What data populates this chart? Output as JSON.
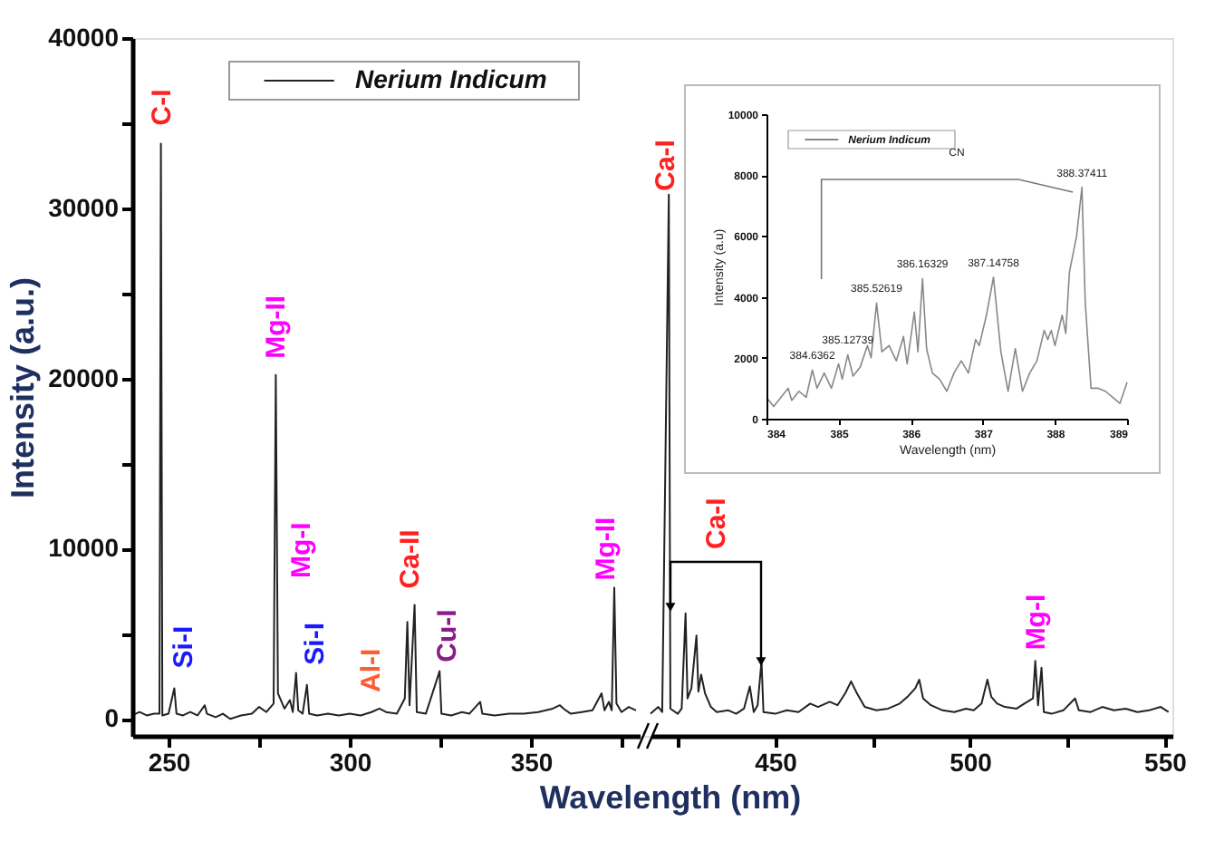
{
  "chart_data": [
    {
      "type": "line",
      "xlabel": "Wavelength (nm)",
      "ylabel": "Intensity (a.u.)",
      "xlim": [
        240,
        380
      ],
      "xticks": [
        250,
        {
          "value": 275,
          "label": null
        },
        300,
        {
          "value": 325,
          "label": null
        },
        350,
        {
          "value": 375,
          "label": null
        }
      ],
      "ylim": [
        -1000,
        40000
      ],
      "yticks": [
        0,
        {
          "value": 5000,
          "label": null
        },
        10000,
        {
          "value": 15000,
          "label": null
        },
        20000,
        {
          "value": 25000,
          "label": null
        },
        30000,
        {
          "value": 35000,
          "label": null
        },
        40000
      ],
      "legend": "top",
      "grid": false,
      "series": [
        {
          "name": "Nerium Indicum",
          "color": "#222222",
          "x": [
            240,
            242,
            244,
            246,
            247.5,
            247.9,
            248.3,
            250,
            251.6,
            252.2,
            254,
            256,
            258,
            260,
            260.6,
            263,
            265,
            267,
            270,
            273,
            275,
            277,
            279,
            279.6,
            280.2,
            282,
            283.5,
            284.3,
            285.2,
            285.8,
            287,
            288.2,
            288.8,
            291,
            294,
            297,
            300,
            303,
            306,
            308.2,
            310,
            313,
            315.2,
            315.9,
            316.5,
            317.9,
            318.5,
            321,
            324.8,
            325.3,
            328,
            331,
            333,
            336,
            336.6,
            340,
            344,
            348,
            352,
            356,
            358,
            359,
            361,
            364,
            367,
            369.5,
            370.3,
            371.5,
            372.3,
            373,
            373.6,
            375,
            377,
            379
          ],
          "values": [
            200,
            400,
            200,
            300,
            300,
            33800,
            200,
            300,
            1800,
            300,
            200,
            400,
            200,
            800,
            300,
            100,
            300,
            0,
            200,
            300,
            700,
            400,
            900,
            20200,
            1500,
            600,
            1100,
            400,
            2700,
            500,
            300,
            2000,
            300,
            200,
            300,
            200,
            300,
            200,
            400,
            600,
            400,
            300,
            1200,
            5700,
            800,
            6700,
            400,
            300,
            2800,
            300,
            200,
            400,
            300,
            1000,
            300,
            200,
            300,
            300,
            400,
            600,
            800,
            600,
            300,
            400,
            500,
            1500,
            500,
            1000,
            500,
            7700,
            900,
            400,
            700,
            500
          ]
        }
      ],
      "annotations": [
        {
          "text": "C-I",
          "x": 247.9,
          "y": 33800
        },
        {
          "text": "Si-I",
          "x": 251.6,
          "y": 1800
        },
        {
          "text": "Mg-II",
          "x": 279.6,
          "y": 20200
        },
        "Mg-I",
        {
          "text": "Si-I",
          "x": 288.2,
          "y": 2000
        },
        {
          "text": "Al-I",
          "x": 308.2,
          "y": 600
        },
        {
          "text": "Ca-II",
          "x": 317.9,
          "y": 6700
        },
        {
          "text": "Cu-I",
          "x": 324.8,
          "y": 2800
        },
        {
          "text": "Mg-II",
          "x": 373,
          "y": 7700
        }
      ]
    },
    {
      "type": "line",
      "xlim": [
        418,
        552
      ],
      "xticks": [
        {
          "value": 425,
          "label": null
        },
        450,
        {
          "value": 475,
          "label": null
        },
        500,
        {
          "value": 525,
          "label": null
        },
        550
      ],
      "ylim": [
        -1000,
        40000
      ],
      "tick_labels": "x",
      "grid": false,
      "series": [
        {
          "color": "#222222",
          "x": [
            418,
            420,
            421,
            422.7,
            423.1,
            425,
            426,
            427,
            427.5,
            428.5,
            429.8,
            430.3,
            431,
            432,
            433.5,
            435,
            438,
            440,
            442,
            443.5,
            444.5,
            445.5,
            446.5,
            447,
            450,
            453,
            456,
            459,
            461,
            464,
            466,
            468,
            469.5,
            471,
            473,
            476,
            479,
            482,
            484,
            486,
            487,
            488,
            490,
            493,
            496,
            499,
            501,
            503,
            504.5,
            505.5,
            507,
            509,
            512,
            514,
            516.2,
            516.8,
            517.5,
            518.4,
            519,
            521,
            524,
            527,
            528,
            531,
            534,
            537,
            540,
            543,
            546,
            549,
            551
          ],
          "values": [
            300,
            700,
            400,
            30800,
            600,
            300,
            600,
            6200,
            1200,
            1800,
            4900,
            1600,
            2600,
            1500,
            700,
            400,
            500,
            300,
            600,
            1900,
            400,
            800,
            3400,
            400,
            300,
            500,
            400,
            900,
            700,
            1000,
            800,
            1500,
            2200,
            1500,
            700,
            500,
            600,
            900,
            1300,
            1800,
            2300,
            1200,
            800,
            500,
            400,
            600,
            500,
            900,
            2300,
            1300,
            900,
            700,
            600,
            900,
            1200,
            3400,
            800,
            3000,
            400,
            300,
            500,
            1200,
            500,
            400,
            700,
            500,
            600,
            400,
            500,
            700,
            400
          ]
        }
      ],
      "annotations": [
        {
          "text": "Ca-I",
          "x": 422.7,
          "y": 30800
        },
        "Ca-I",
        {
          "text": "Mg-I",
          "x": 516.8,
          "y": 3400
        }
      ]
    },
    {
      "type": "line",
      "xlabel": "Wavelength (nm)",
      "ylabel": "Intensity (a.u)",
      "xlim": [
        384,
        389
      ],
      "xticks": [
        384,
        385,
        386,
        387,
        388,
        389
      ],
      "ylim": [
        0,
        10000
      ],
      "yticks": [
        0,
        2000,
        4000,
        6000,
        8000,
        10000
      ],
      "legend": "top left",
      "grid": false,
      "series": [
        {
          "name": "Nerium Indicum",
          "color": "#888888",
          "x": [
            384.0,
            384.1,
            384.2,
            384.3,
            384.35,
            384.45,
            384.55,
            384.6362,
            384.7,
            384.8,
            384.9,
            385.0,
            385.05,
            385.12739,
            385.2,
            385.3,
            385.4,
            385.45,
            385.52619,
            385.6,
            385.7,
            385.8,
            385.9,
            385.95,
            386.05,
            386.1,
            386.16329,
            386.22,
            386.3,
            386.4,
            386.5,
            386.6,
            386.7,
            386.8,
            386.9,
            386.95,
            387.05,
            387.14758,
            387.25,
            387.35,
            387.45,
            387.55,
            387.65,
            387.75,
            387.85,
            387.9,
            387.95,
            388.0,
            388.1,
            388.15,
            388.2,
            388.3,
            388.37411,
            388.42,
            388.5,
            388.6,
            388.7,
            388.8,
            388.9,
            389.0
          ],
          "values": [
            700,
            400,
            700,
            1000,
            600,
            900,
            700,
            1600,
            1000,
            1500,
            1000,
            1800,
            1300,
            2100,
            1400,
            1700,
            2400,
            2000,
            3800,
            2200,
            2400,
            1900,
            2700,
            1800,
            3500,
            2200,
            4600,
            2300,
            1500,
            1300,
            900,
            1500,
            1900,
            1500,
            2600,
            2400,
            3400,
            4650,
            2200,
            900,
            2300,
            900,
            1500,
            1900,
            2900,
            2600,
            2900,
            2400,
            3400,
            2800,
            4800,
            6000,
            7600,
            3800,
            1000,
            1000,
            900,
            700,
            500,
            1200
          ]
        }
      ],
      "annotations": [
        {
          "text": "384.6362",
          "x": 384.6362,
          "y": 1600
        },
        {
          "text": "385.12739",
          "x": 385.12739,
          "y": 2100
        },
        {
          "text": "385.52619",
          "x": 385.52619,
          "y": 3800
        },
        {
          "text": "386.16329",
          "x": 386.16329,
          "y": 4600
        },
        {
          "text": "387.14758",
          "x": 387.14758,
          "y": 4650
        },
        {
          "text": "388.37411",
          "x": 388.37411,
          "y": 7600
        },
        "CN"
      ]
    }
  ]
}
